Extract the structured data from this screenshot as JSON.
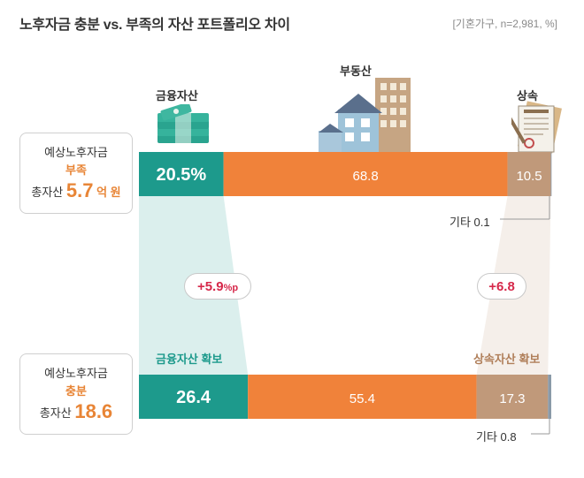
{
  "title": "노후자금 충분 vs. 부족의 자산 포트폴리오 차이",
  "note": "[기혼가구, n=2,981, %]",
  "categories": {
    "financial": "금융자산",
    "realestate": "부동산",
    "inheritance": "상속"
  },
  "groups": {
    "shortage": {
      "line1": "예상노후자금",
      "line2": "부족",
      "total_prefix": "총자산",
      "total_value": "5.7",
      "total_unit": "억 원",
      "other_label": "기타 0.1"
    },
    "sufficient": {
      "line1": "예상노후자금",
      "line2": "충분",
      "total_prefix": "총자산",
      "total_value": "18.6",
      "other_label": "기타 0.8"
    }
  },
  "diffs": {
    "financial_main": "+5.9",
    "financial_suffix": "%p",
    "inheritance": "+6.8"
  },
  "gains": {
    "financial": "금융자산 확보",
    "inheritance": "상속자산 확보"
  },
  "colors": {
    "financial": "#1d9a8c",
    "realestate": "#f0823a",
    "inheritance": "#c0997a",
    "other": "#8a9aa8",
    "highlight": "#e88536",
    "diff": "#d6284a"
  },
  "chart_data": {
    "type": "bar",
    "orientation": "horizontal-stacked",
    "categories": [
      "예상노후자금 부족",
      "예상노후자금 충분"
    ],
    "series": [
      {
        "name": "금융자산",
        "values": [
          20.5,
          26.4
        ],
        "labels": [
          "20.5%",
          "26.4"
        ]
      },
      {
        "name": "부동산",
        "values": [
          68.8,
          55.4
        ],
        "labels": [
          "68.8",
          "55.4"
        ]
      },
      {
        "name": "상속",
        "values": [
          10.5,
          17.3
        ],
        "labels": [
          "10.5",
          "17.3"
        ]
      },
      {
        "name": "기타",
        "values": [
          0.1,
          0.8
        ]
      }
    ]
  }
}
